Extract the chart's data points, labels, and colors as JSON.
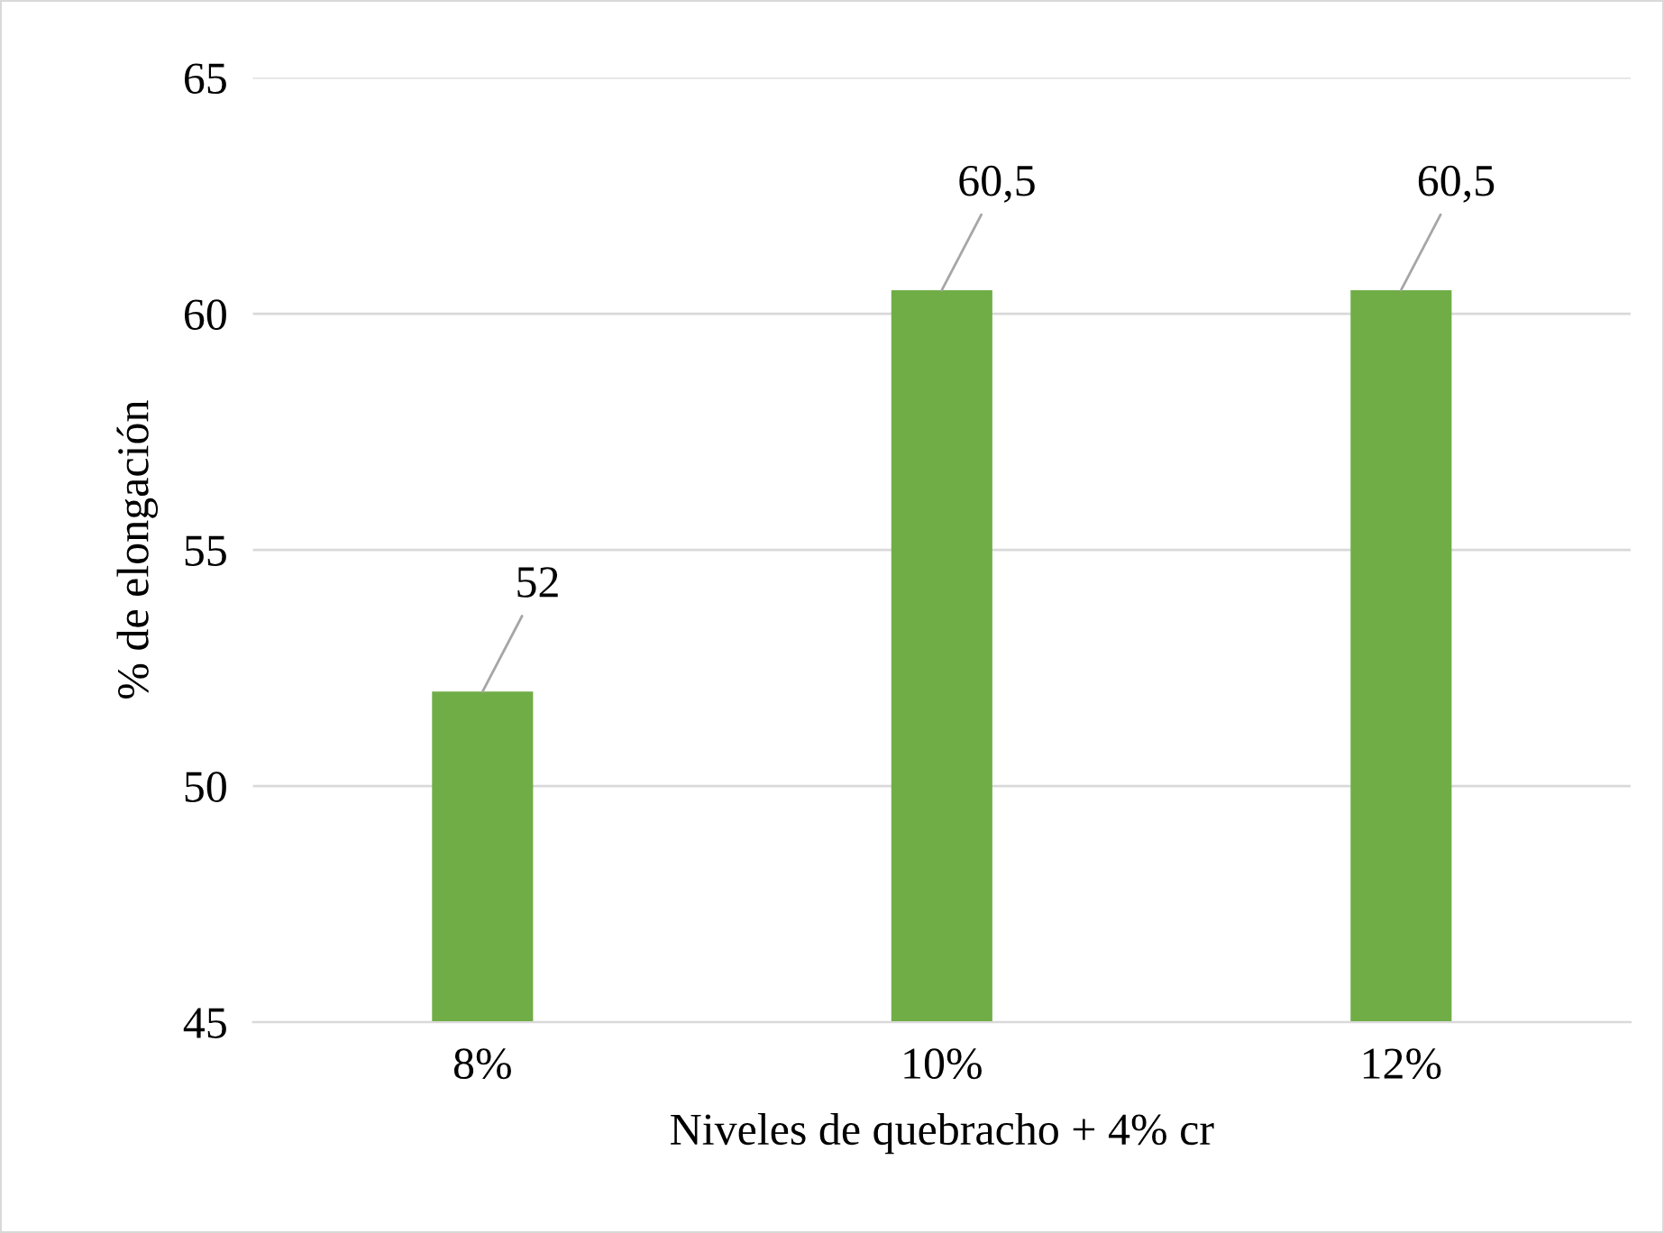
{
  "chart_data": {
    "type": "bar",
    "xlabel": "Niveles de quebracho + 4% cr",
    "ylabel": "% de elongación",
    "categories": [
      "8%",
      "10%",
      "12%"
    ],
    "values": [
      52,
      60.5,
      60.5
    ],
    "value_labels": [
      "52",
      "60,5",
      "60,5"
    ],
    "color": "#70ad47",
    "ylim": [
      45,
      65
    ],
    "yticks": [
      45,
      50,
      55,
      60,
      65
    ],
    "grid": "y"
  }
}
